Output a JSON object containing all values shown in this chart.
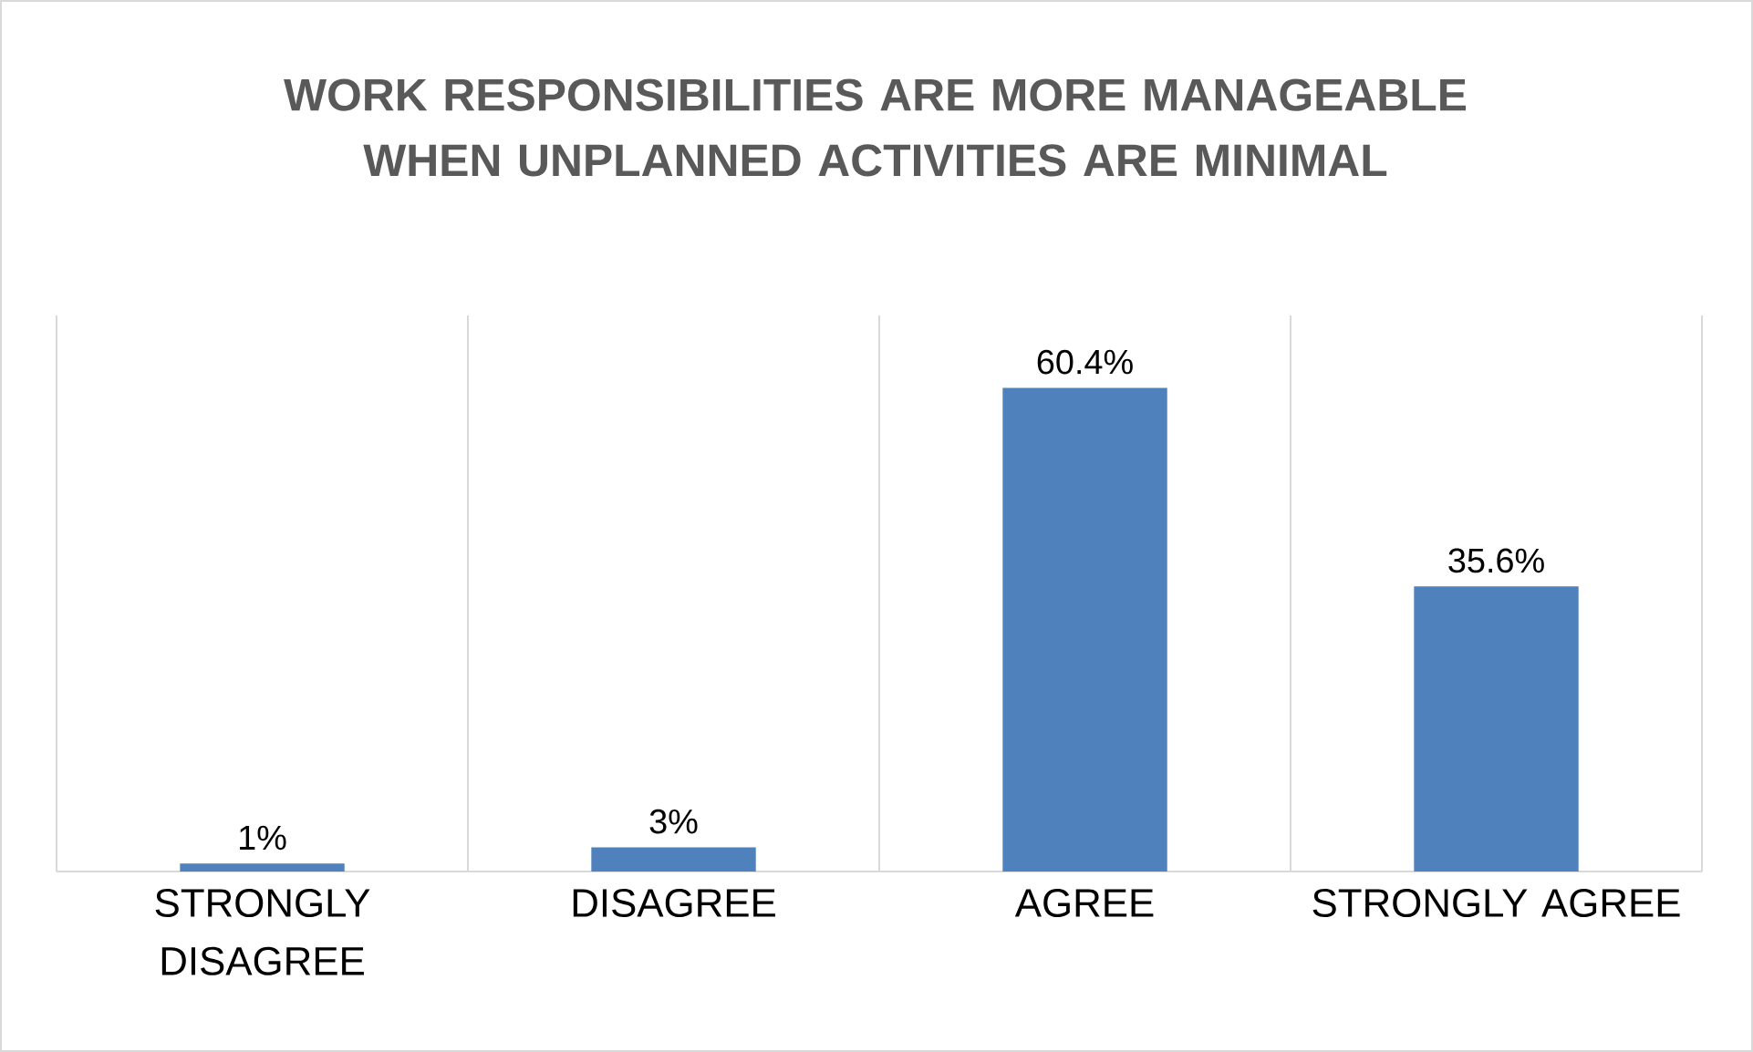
{
  "chart_data": {
    "type": "bar",
    "title": "WORK RESPONSIBILITIES ARE MORE MANAGEABLE WHEN UNPLANNED ACTIVITIES ARE MINIMAL",
    "categories": [
      "STRONGLY DISAGREE",
      "DISAGREE",
      "AGREE",
      "STRONGLY AGREE"
    ],
    "values": [
      1,
      3,
      60.4,
      35.6
    ],
    "value_labels": [
      "1%",
      "3%",
      "60.4%",
      "35.6%"
    ],
    "color": "#4f81bd",
    "grid": "x"
  }
}
